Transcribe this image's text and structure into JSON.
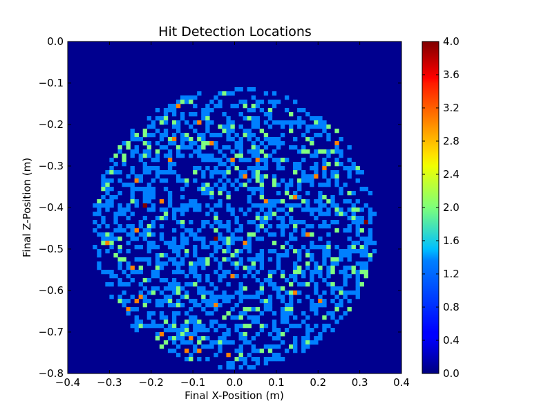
{
  "chart_data": {
    "type": "heatmap",
    "title": "Hit Detection Locations",
    "xlabel": "Final X-Position (m)",
    "ylabel": "Final Z-Position (m)",
    "xlim": [
      -0.4,
      0.4
    ],
    "ylim": [
      -0.8,
      0.0
    ],
    "grid": false,
    "x_ticks": [
      "−0.4",
      "−0.3",
      "−0.2",
      "−0.1",
      "0.0",
      "0.1",
      "0.2",
      "0.3",
      "0.4"
    ],
    "y_ticks": [
      "0.0",
      "−0.1",
      "−0.2",
      "−0.3",
      "−0.4",
      "−0.5",
      "−0.6",
      "−0.7",
      "−0.8"
    ],
    "colorbar": {
      "colormap": "jet",
      "range": [
        0.0,
        4.0
      ],
      "ticks": [
        "0.0",
        "0.4",
        "0.8",
        "1.2",
        "1.6",
        "2.0",
        "2.4",
        "2.8",
        "3.2",
        "3.6",
        "4.0"
      ]
    },
    "bins": {
      "x": 80,
      "z": 80,
      "bin_size_m": 0.01
    },
    "hit_region": {
      "shape": "circle",
      "center_x": 0.0,
      "center_z": -0.45,
      "radius": 0.34
    },
    "high_count_hits": [
      {
        "x": -0.135,
        "z": -0.155,
        "count": 3
      },
      {
        "x": -0.085,
        "z": -0.195,
        "count": 3
      },
      {
        "x": -0.145,
        "z": -0.235,
        "count": 3
      },
      {
        "x": -0.055,
        "z": -0.245,
        "count": 3
      },
      {
        "x": -0.155,
        "z": -0.285,
        "count": 3
      },
      {
        "x": -0.005,
        "z": -0.285,
        "count": 3
      },
      {
        "x": 0.055,
        "z": -0.285,
        "count": 3
      },
      {
        "x": 0.215,
        "z": -0.305,
        "count": 3
      },
      {
        "x": 0.025,
        "z": -0.325,
        "count": 3
      },
      {
        "x": 0.245,
        "z": -0.245,
        "count": 3
      },
      {
        "x": -0.235,
        "z": -0.335,
        "count": 3
      },
      {
        "x": 0.195,
        "z": -0.325,
        "count": 3
      },
      {
        "x": -0.175,
        "z": -0.385,
        "count": 3
      },
      {
        "x": 0.075,
        "z": -0.385,
        "count": 3
      },
      {
        "x": 0.145,
        "z": -0.375,
        "count": 3
      },
      {
        "x": -0.215,
        "z": -0.395,
        "count": 4
      },
      {
        "x": 0.315,
        "z": -0.435,
        "count": 4
      },
      {
        "x": -0.235,
        "z": -0.455,
        "count": 3
      },
      {
        "x": 0.175,
        "z": -0.465,
        "count": 3
      },
      {
        "x": -0.305,
        "z": -0.485,
        "count": 3
      },
      {
        "x": 0.025,
        "z": -0.485,
        "count": 3
      },
      {
        "x": -0.045,
        "z": -0.475,
        "count": 4
      },
      {
        "x": -0.245,
        "z": -0.545,
        "count": 3
      },
      {
        "x": -0.005,
        "z": -0.565,
        "count": 3
      },
      {
        "x": 0.145,
        "z": -0.605,
        "count": 3
      },
      {
        "x": -0.225,
        "z": -0.615,
        "count": 3
      },
      {
        "x": 0.205,
        "z": -0.625,
        "count": 3
      },
      {
        "x": -0.235,
        "z": -0.625,
        "count": 3
      },
      {
        "x": -0.045,
        "z": -0.635,
        "count": 3
      },
      {
        "x": -0.255,
        "z": -0.645,
        "count": 3
      },
      {
        "x": -0.175,
        "z": -0.705,
        "count": 3
      },
      {
        "x": -0.105,
        "z": -0.715,
        "count": 3
      },
      {
        "x": -0.115,
        "z": -0.745,
        "count": 3
      },
      {
        "x": -0.085,
        "z": -0.745,
        "count": 3
      },
      {
        "x": -0.015,
        "z": -0.755,
        "count": 3
      }
    ]
  }
}
